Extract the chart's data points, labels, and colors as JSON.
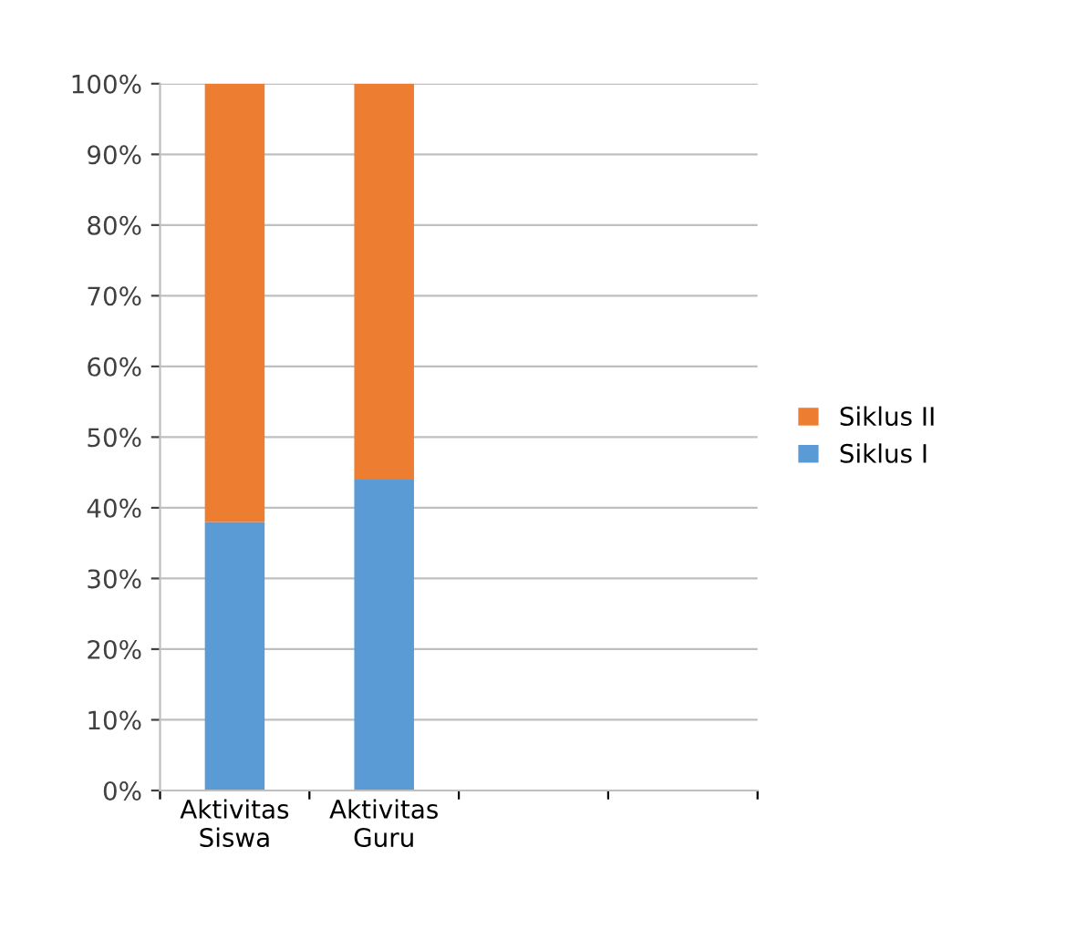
{
  "chart_data": {
    "type": "bar",
    "stacked": true,
    "categories": [
      "Aktivitas\nSiswa",
      "Aktivitas\nGuru",
      null,
      null
    ],
    "series": [
      {
        "name": "Siklus I",
        "color": "#5b9bd5",
        "values": [
          38,
          44,
          null,
          null
        ]
      },
      {
        "name": "Siklus II",
        "color": "#ed7d31",
        "values": [
          62,
          56,
          null,
          null
        ]
      }
    ],
    "ylim": [
      0,
      100
    ],
    "yticks": [
      {
        "value": 0,
        "label": "0%"
      },
      {
        "value": 10,
        "label": "10%"
      },
      {
        "value": 20,
        "label": "20%"
      },
      {
        "value": 30,
        "label": "30%"
      },
      {
        "value": 40,
        "label": "40%"
      },
      {
        "value": 50,
        "label": "50%"
      },
      {
        "value": 60,
        "label": "60%"
      },
      {
        "value": 70,
        "label": "70%"
      },
      {
        "value": 80,
        "label": "80%"
      },
      {
        "value": 90,
        "label": "90%"
      },
      {
        "value": 100,
        "label": "100%"
      }
    ],
    "grid": "y",
    "legend": "right"
  }
}
